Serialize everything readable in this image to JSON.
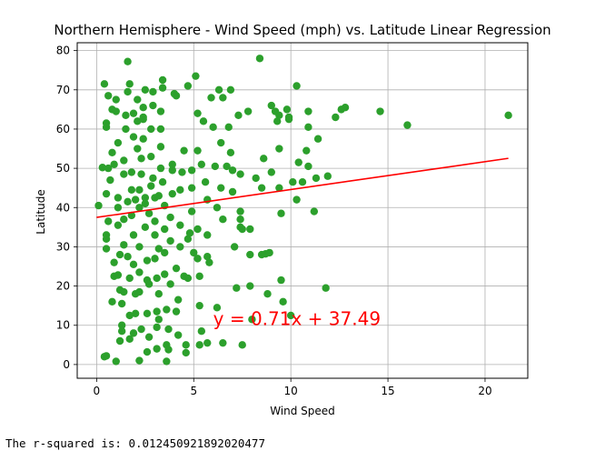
{
  "chart_data": {
    "type": "scatter",
    "title": "Northern Hemisphere - Wind Speed (mph) vs. Latitude Linear Regression",
    "xlabel": "Wind Speed",
    "ylabel": "Latitude",
    "xlim": [
      -1,
      22.2
    ],
    "ylim": [
      -3.5,
      82
    ],
    "xticks": [
      0,
      5,
      10,
      15,
      20
    ],
    "yticks": [
      0,
      10,
      20,
      30,
      40,
      50,
      60,
      70,
      80
    ],
    "grid": true,
    "marker_color": "#2ca02c",
    "regression": {
      "slope": 0.71,
      "intercept": 37.49,
      "x_range": [
        0,
        21.2
      ],
      "color": "#ff0000",
      "equation": "y = 0.71x + 37.49",
      "annotation_at": [
        6,
        10
      ]
    },
    "points": [
      [
        0.1,
        40.5
      ],
      [
        0.3,
        50.2
      ],
      [
        0.4,
        71.5
      ],
      [
        0.5,
        61.5
      ],
      [
        0.5,
        60.5
      ],
      [
        0.6,
        68.5
      ],
      [
        0.6,
        50.0
      ],
      [
        0.5,
        43.5
      ],
      [
        0.6,
        36.5
      ],
      [
        0.5,
        29.5
      ],
      [
        0.5,
        33.0
      ],
      [
        0.5,
        32.0
      ],
      [
        0.4,
        2.0
      ],
      [
        0.5,
        2.2
      ],
      [
        0.8,
        65.0
      ],
      [
        0.7,
        47.0
      ],
      [
        0.8,
        54.0
      ],
      [
        0.9,
        51.0
      ],
      [
        0.9,
        26.0
      ],
      [
        0.9,
        22.5
      ],
      [
        0.8,
        16.0
      ],
      [
        1.0,
        67.5
      ],
      [
        1.0,
        64.5
      ],
      [
        1.1,
        56.5
      ],
      [
        1.1,
        42.5
      ],
      [
        1.1,
        40.0
      ],
      [
        1.1,
        35.5
      ],
      [
        1.2,
        28.0
      ],
      [
        1.1,
        22.8
      ],
      [
        1.0,
        0.8
      ],
      [
        1.2,
        6.0
      ],
      [
        1.2,
        19.0
      ],
      [
        1.3,
        8.5
      ],
      [
        1.3,
        10.0
      ],
      [
        1.3,
        15.5
      ],
      [
        1.4,
        18.5
      ],
      [
        1.4,
        30.5
      ],
      [
        1.4,
        37.0
      ],
      [
        1.4,
        48.5
      ],
      [
        1.4,
        52.0
      ],
      [
        1.5,
        60.0
      ],
      [
        1.5,
        63.5
      ],
      [
        1.6,
        69.5
      ],
      [
        1.6,
        77.2
      ],
      [
        1.7,
        71.5
      ],
      [
        1.6,
        41.5
      ],
      [
        1.6,
        27.5
      ],
      [
        1.7,
        22.0
      ],
      [
        1.7,
        12.5
      ],
      [
        1.7,
        6.5
      ],
      [
        1.8,
        44.5
      ],
      [
        1.8,
        38.0
      ],
      [
        1.8,
        49.0
      ],
      [
        1.9,
        58.0
      ],
      [
        1.9,
        64.0
      ],
      [
        1.9,
        33.0
      ],
      [
        1.9,
        25.5
      ],
      [
        1.9,
        8.0
      ],
      [
        2.0,
        13.0
      ],
      [
        2.0,
        18.0
      ],
      [
        2.0,
        42.0
      ],
      [
        2.1,
        55.0
      ],
      [
        2.1,
        62.0
      ],
      [
        2.1,
        67.5
      ],
      [
        2.2,
        44.5
      ],
      [
        2.2,
        40.0
      ],
      [
        2.2,
        30.0
      ],
      [
        2.2,
        23.5
      ],
      [
        2.2,
        18.5
      ],
      [
        2.2,
        1.0
      ],
      [
        2.3,
        9.0
      ],
      [
        2.3,
        48.5
      ],
      [
        2.3,
        52.5
      ],
      [
        2.4,
        57.5
      ],
      [
        2.4,
        62.5
      ],
      [
        2.4,
        65.5
      ],
      [
        2.5,
        70.0
      ],
      [
        2.5,
        42.5
      ],
      [
        2.5,
        41.0
      ],
      [
        2.5,
        35.0
      ],
      [
        2.6,
        26.5
      ],
      [
        2.6,
        21.5
      ],
      [
        2.6,
        13.0
      ],
      [
        2.6,
        3.2
      ],
      [
        2.7,
        7.0
      ],
      [
        2.7,
        20.5
      ],
      [
        2.7,
        38.5
      ],
      [
        2.8,
        45.5
      ],
      [
        2.8,
        53.0
      ],
      [
        2.8,
        60.0
      ],
      [
        2.9,
        66.0
      ],
      [
        2.9,
        69.5
      ],
      [
        2.9,
        47.5
      ],
      [
        3.0,
        42.5
      ],
      [
        3.0,
        36.5
      ],
      [
        3.0,
        33.0
      ],
      [
        3.0,
        27.0
      ],
      [
        3.1,
        22.0
      ],
      [
        3.1,
        13.5
      ],
      [
        3.1,
        9.5
      ],
      [
        3.1,
        4.0
      ],
      [
        3.2,
        11.5
      ],
      [
        3.2,
        18.0
      ],
      [
        3.2,
        29.5
      ],
      [
        3.2,
        43.0
      ],
      [
        3.3,
        50.0
      ],
      [
        3.3,
        55.5
      ],
      [
        3.3,
        60.0
      ],
      [
        3.3,
        64.5
      ],
      [
        3.4,
        72.5
      ],
      [
        3.4,
        70.5
      ],
      [
        3.4,
        46.5
      ],
      [
        3.5,
        40.5
      ],
      [
        3.5,
        34.5
      ],
      [
        3.5,
        28.5
      ],
      [
        3.5,
        23.0
      ],
      [
        3.6,
        14.0
      ],
      [
        3.6,
        5.0
      ],
      [
        3.6,
        0.8
      ],
      [
        3.7,
        3.8
      ],
      [
        3.7,
        9.0
      ],
      [
        3.8,
        20.5
      ],
      [
        3.8,
        31.5
      ],
      [
        3.8,
        37.5
      ],
      [
        3.9,
        43.5
      ],
      [
        3.9,
        49.5
      ],
      [
        3.9,
        51.0
      ],
      [
        4.0,
        69.0
      ],
      [
        4.1,
        68.5
      ],
      [
        4.1,
        24.5
      ],
      [
        4.1,
        13.5
      ],
      [
        4.2,
        7.5
      ],
      [
        4.2,
        16.5
      ],
      [
        4.3,
        30.0
      ],
      [
        4.3,
        35.5
      ],
      [
        4.3,
        44.5
      ],
      [
        4.4,
        49.0
      ],
      [
        4.5,
        54.5
      ],
      [
        4.5,
        22.5
      ],
      [
        4.6,
        5.0
      ],
      [
        4.6,
        3.0
      ],
      [
        4.7,
        22.0
      ],
      [
        4.7,
        32.0
      ],
      [
        4.7,
        71.0
      ],
      [
        4.8,
        33.5
      ],
      [
        4.9,
        39.0
      ],
      [
        4.9,
        45.0
      ],
      [
        4.9,
        49.5
      ],
      [
        5.0,
        28.5
      ],
      [
        5.1,
        73.5
      ],
      [
        5.2,
        64.0
      ],
      [
        5.2,
        54.5
      ],
      [
        5.2,
        34.5
      ],
      [
        5.2,
        27.0
      ],
      [
        5.3,
        22.5
      ],
      [
        5.3,
        15.0
      ],
      [
        5.4,
        8.5
      ],
      [
        5.3,
        5.0
      ],
      [
        5.4,
        51.0
      ],
      [
        5.5,
        62.0
      ],
      [
        5.6,
        46.5
      ],
      [
        5.7,
        42.0
      ],
      [
        5.7,
        33.0
      ],
      [
        5.7,
        27.5
      ],
      [
        5.8,
        26.0
      ],
      [
        5.7,
        5.5
      ],
      [
        5.9,
        68.0
      ],
      [
        6.0,
        60.5
      ],
      [
        6.1,
        50.5
      ],
      [
        6.2,
        14.5
      ],
      [
        6.2,
        40.0
      ],
      [
        6.3,
        70.0
      ],
      [
        6.4,
        56.5
      ],
      [
        6.4,
        45.0
      ],
      [
        6.5,
        37.0
      ],
      [
        6.5,
        5.5
      ],
      [
        6.7,
        50.5
      ],
      [
        6.8,
        60.5
      ],
      [
        6.9,
        70.0
      ],
      [
        6.9,
        54.0
      ],
      [
        7.0,
        49.5
      ],
      [
        7.0,
        44.0
      ],
      [
        7.1,
        30.0
      ],
      [
        7.2,
        19.5
      ],
      [
        7.3,
        63.5
      ],
      [
        7.4,
        48.5
      ],
      [
        7.4,
        39.0
      ],
      [
        7.4,
        37.0
      ],
      [
        7.4,
        35.0
      ],
      [
        7.5,
        34.5
      ],
      [
        7.5,
        5.0
      ],
      [
        7.8,
        64.5
      ],
      [
        7.9,
        34.5
      ],
      [
        7.9,
        28.0
      ],
      [
        7.9,
        20.0
      ],
      [
        8.0,
        11.5
      ],
      [
        8.2,
        47.5
      ],
      [
        8.4,
        78.0
      ],
      [
        8.5,
        45.0
      ],
      [
        8.5,
        28.0
      ],
      [
        8.6,
        52.5
      ],
      [
        8.7,
        28.2
      ],
      [
        8.8,
        18.0
      ],
      [
        8.9,
        28.5
      ],
      [
        9.0,
        66.0
      ],
      [
        9.0,
        49.0
      ],
      [
        9.2,
        64.5
      ],
      [
        9.3,
        62.0
      ],
      [
        9.4,
        63.5
      ],
      [
        9.4,
        55.0
      ],
      [
        9.4,
        45.0
      ],
      [
        9.5,
        38.5
      ],
      [
        9.5,
        21.5
      ],
      [
        9.6,
        16.0
      ],
      [
        9.8,
        65.0
      ],
      [
        9.9,
        63.0
      ],
      [
        9.9,
        62.5
      ],
      [
        10.0,
        12.5
      ],
      [
        10.1,
        46.5
      ],
      [
        10.3,
        71.0
      ],
      [
        10.3,
        42.0
      ],
      [
        10.4,
        51.5
      ],
      [
        10.6,
        46.5
      ],
      [
        10.8,
        54.5
      ],
      [
        10.9,
        64.5
      ],
      [
        10.9,
        60.5
      ],
      [
        10.9,
        50.5
      ],
      [
        11.2,
        39.0
      ],
      [
        11.3,
        47.5
      ],
      [
        11.4,
        57.5
      ],
      [
        11.8,
        19.5
      ],
      [
        11.9,
        48.0
      ],
      [
        12.3,
        63.0
      ],
      [
        12.6,
        65.0
      ],
      [
        12.8,
        65.5
      ],
      [
        14.6,
        64.5
      ],
      [
        16.0,
        61.0
      ],
      [
        21.2,
        63.5
      ],
      [
        6.5,
        68.0
      ],
      [
        2.4,
        63.0
      ]
    ]
  },
  "footer": {
    "text": "The r-squared is: 0.012450921892020477"
  }
}
